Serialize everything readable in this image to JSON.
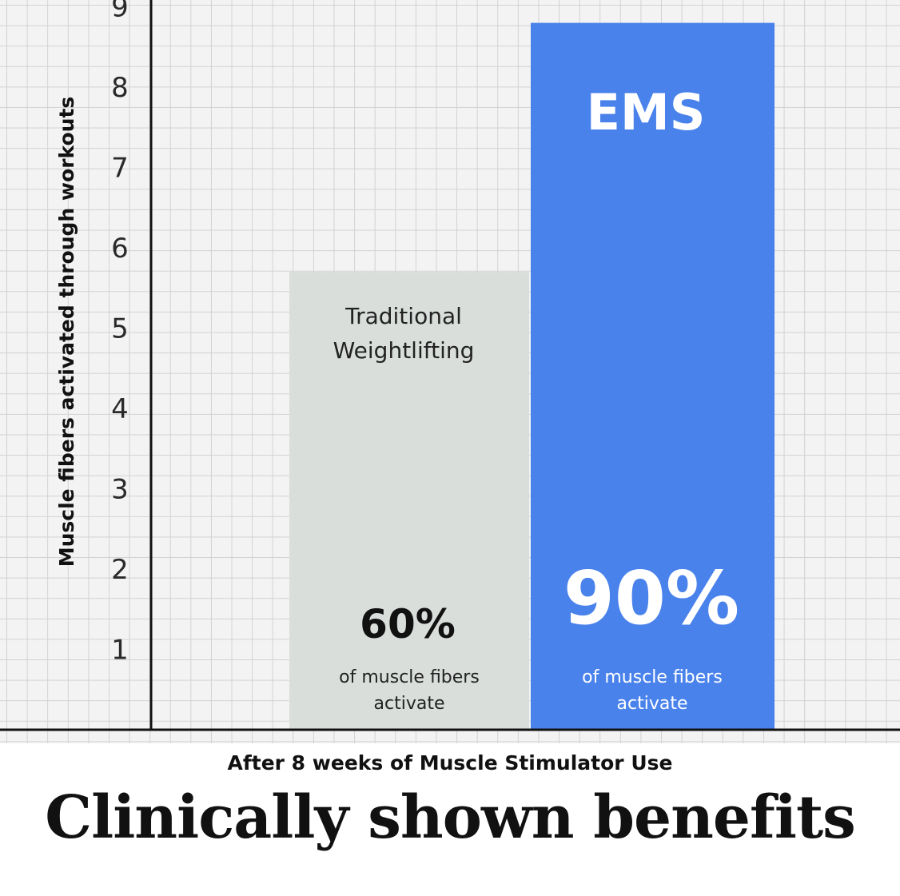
{
  "chart_data": {
    "type": "bar",
    "categories": [
      "Traditional Weightlifting",
      "EMS"
    ],
    "values": [
      5.7,
      8.8
    ],
    "ylabel": "Muscle fibers activated through workouts",
    "yticks": [
      1,
      2,
      3,
      4,
      5,
      6,
      7,
      8,
      9
    ],
    "ylim": [
      0,
      9.2
    ],
    "grid": true,
    "bar_titles": [
      [
        "Traditional",
        "Weightlifting"
      ],
      [
        "EMS"
      ]
    ],
    "percent_labels": [
      "60%",
      "90%"
    ],
    "percent_sublabels": [
      [
        "of muscle fibers",
        "activate"
      ],
      [
        "of muscle fibers",
        "activate"
      ]
    ],
    "colors": {
      "bars": [
        "#d9dedb",
        "#4a82ec"
      ],
      "grid": "#d2d2d2",
      "axis": "#111111"
    }
  },
  "footer": {
    "subtitle": "After 8 weeks of Muscle Stimulator Use",
    "headline": "Clinically shown benefits"
  }
}
